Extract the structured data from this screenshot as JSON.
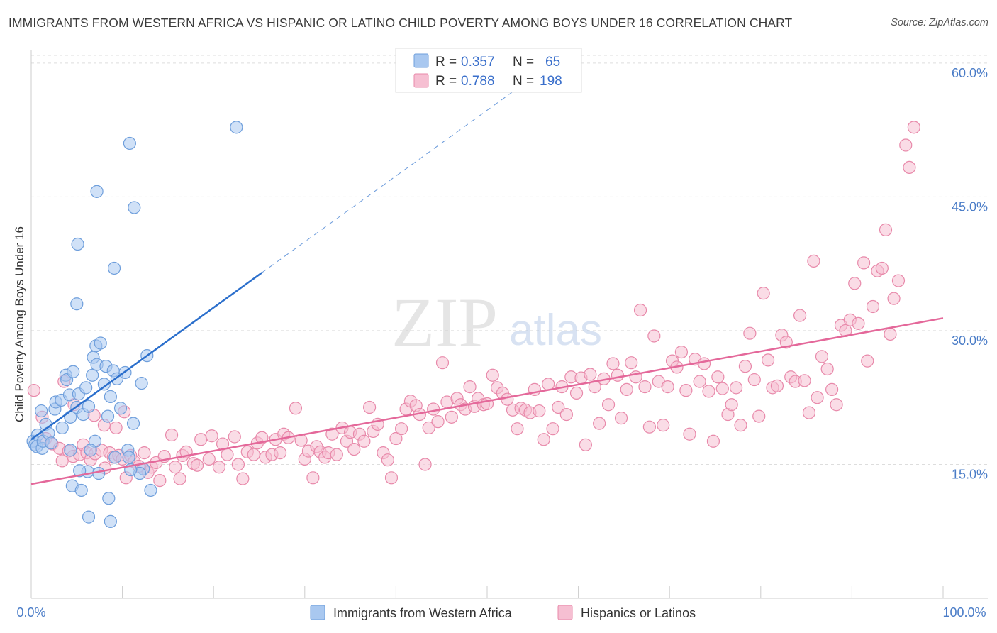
{
  "title": "IMMIGRANTS FROM WESTERN AFRICA VS HISPANIC OR LATINO CHILD POVERTY AMONG BOYS UNDER 16 CORRELATION CHART",
  "source": "Source: ZipAtlas.com",
  "watermark": {
    "zip": "ZIP",
    "atlas": "atlas"
  },
  "colors": {
    "blue_fill": "#a9c8f0",
    "blue_stroke": "#6f9fdc",
    "blue_line": "#2b6fcc",
    "pink_fill": "#f6bfd2",
    "pink_stroke": "#e889aa",
    "pink_line": "#e4689a",
    "tick_text": "#4a7cc7",
    "grid": "#dddddd"
  },
  "legend": {
    "rows": [
      {
        "r_label": "R =",
        "r_value": "0.357",
        "n_label": "N =",
        "n_value": "65"
      },
      {
        "r_label": "R =",
        "r_value": "0.788",
        "n_label": "N =",
        "n_value": "198"
      }
    ]
  },
  "bottom_legend": [
    {
      "label": "Immigrants from Western Africa"
    },
    {
      "label": "Hispanics or Latinos"
    }
  ],
  "chart_data": {
    "type": "scatter",
    "title": "IMMIGRANTS FROM WESTERN AFRICA VS HISPANIC OR LATINO CHILD POVERTY AMONG BOYS UNDER 16 CORRELATION CHART",
    "xlabel": "",
    "ylabel": "Child Poverty Among Boys Under 16",
    "xlim": [
      0,
      100
    ],
    "ylim": [
      0,
      61.5
    ],
    "x_tick_labels": [
      "0.0%",
      "100.0%"
    ],
    "y_ticks": [
      15,
      30,
      45,
      60
    ],
    "y_tick_labels": [
      "15.0%",
      "30.0%",
      "45.0%",
      "60.0%"
    ],
    "grid": true,
    "legend_position": "top-center",
    "series": [
      {
        "name": "Immigrants from Western Africa",
        "r": 0.357,
        "n": 65,
        "trend": {
          "x0": 0,
          "y0": 17.8,
          "x1": 25.3,
          "y1": 36.5,
          "dashed_to_x": 55,
          "dashed_to_y": 58.4
        },
        "points": [
          [
            0.2,
            17.6
          ],
          [
            0.4,
            17.2
          ],
          [
            0.7,
            18.3
          ],
          [
            0.6,
            17.0
          ],
          [
            1.1,
            21.0
          ],
          [
            1.2,
            16.8
          ],
          [
            1.3,
            17.6
          ],
          [
            1.6,
            19.5
          ],
          [
            1.9,
            18.5
          ],
          [
            2.2,
            17.4
          ],
          [
            2.6,
            21.2
          ],
          [
            2.7,
            22.0
          ],
          [
            3.3,
            22.2
          ],
          [
            3.4,
            19.1
          ],
          [
            3.8,
            25.0
          ],
          [
            3.9,
            24.5
          ],
          [
            4.2,
            22.8
          ],
          [
            4.3,
            20.3
          ],
          [
            4.6,
            25.4
          ],
          [
            5.0,
            21.4
          ],
          [
            5.2,
            22.9
          ],
          [
            5.7,
            20.6
          ],
          [
            6.0,
            23.6
          ],
          [
            6.3,
            21.5
          ],
          [
            6.7,
            25.0
          ],
          [
            6.8,
            27.0
          ],
          [
            7.1,
            28.3
          ],
          [
            7.2,
            26.2
          ],
          [
            7.6,
            28.6
          ],
          [
            8.0,
            24.0
          ],
          [
            8.2,
            26.0
          ],
          [
            8.4,
            20.4
          ],
          [
            8.7,
            22.6
          ],
          [
            9.0,
            25.5
          ],
          [
            9.4,
            24.6
          ],
          [
            9.8,
            21.3
          ],
          [
            10.3,
            25.3
          ],
          [
            10.6,
            16.6
          ],
          [
            10.7,
            15.8
          ],
          [
            5.0,
            33.0
          ],
          [
            5.1,
            39.7
          ],
          [
            7.2,
            45.6
          ],
          [
            9.1,
            37.0
          ],
          [
            10.8,
            51.0
          ],
          [
            11.3,
            43.8
          ],
          [
            22.5,
            52.8
          ],
          [
            11.2,
            19.6
          ],
          [
            12.1,
            24.1
          ],
          [
            12.7,
            27.2
          ],
          [
            12.3,
            14.5
          ],
          [
            11.9,
            14.0
          ],
          [
            13.1,
            12.1
          ],
          [
            4.5,
            12.6
          ],
          [
            5.5,
            12.1
          ],
          [
            6.2,
            14.2
          ],
          [
            7.4,
            14.0
          ],
          [
            8.5,
            11.2
          ],
          [
            8.7,
            8.6
          ],
          [
            6.3,
            9.1
          ],
          [
            4.3,
            16.6
          ],
          [
            5.3,
            14.3
          ],
          [
            7.0,
            17.6
          ],
          [
            9.2,
            15.8
          ],
          [
            10.9,
            14.4
          ],
          [
            6.5,
            16.6
          ]
        ]
      },
      {
        "name": "Hispanics or Latinos",
        "r": 0.788,
        "n": 198,
        "trend": {
          "x0": 0,
          "y0": 12.8,
          "x1": 100,
          "y1": 31.4
        },
        "points": [
          [
            0.3,
            23.3
          ],
          [
            1.2,
            20.3
          ],
          [
            1.6,
            17.9
          ],
          [
            2.3,
            17.3
          ],
          [
            3.1,
            16.8
          ],
          [
            3.4,
            15.4
          ],
          [
            4.1,
            16.5
          ],
          [
            4.6,
            15.9
          ],
          [
            5.3,
            16.1
          ],
          [
            5.7,
            17.2
          ],
          [
            6.1,
            16.3
          ],
          [
            6.5,
            15.5
          ],
          [
            7.0,
            16.2
          ],
          [
            7.7,
            16.6
          ],
          [
            8.1,
            14.6
          ],
          [
            8.6,
            16.3
          ],
          [
            9.0,
            15.8
          ],
          [
            9.6,
            16.0
          ],
          [
            10.0,
            15.6
          ],
          [
            10.4,
            13.5
          ],
          [
            10.9,
            16.0
          ],
          [
            11.3,
            15.3
          ],
          [
            11.8,
            14.8
          ],
          [
            12.4,
            16.3
          ],
          [
            12.8,
            14.1
          ],
          [
            13.2,
            14.7
          ],
          [
            13.7,
            15.2
          ],
          [
            14.1,
            13.2
          ],
          [
            14.6,
            15.9
          ],
          [
            15.4,
            18.3
          ],
          [
            15.8,
            14.7
          ],
          [
            16.3,
            13.4
          ],
          [
            16.6,
            16.0
          ],
          [
            17.0,
            16.4
          ],
          [
            17.8,
            15.1
          ],
          [
            18.2,
            14.9
          ],
          [
            18.6,
            17.8
          ],
          [
            19.5,
            15.6
          ],
          [
            19.8,
            18.2
          ],
          [
            20.6,
            14.7
          ],
          [
            21.0,
            17.3
          ],
          [
            21.5,
            16.1
          ],
          [
            22.3,
            18.1
          ],
          [
            22.7,
            15.0
          ],
          [
            23.2,
            13.4
          ],
          [
            23.7,
            16.4
          ],
          [
            24.4,
            16.1
          ],
          [
            24.8,
            17.4
          ],
          [
            25.3,
            18.0
          ],
          [
            25.7,
            15.8
          ],
          [
            26.4,
            16.1
          ],
          [
            26.8,
            17.8
          ],
          [
            27.3,
            16.3
          ],
          [
            27.7,
            18.4
          ],
          [
            28.2,
            18.0
          ],
          [
            29.0,
            21.3
          ],
          [
            29.6,
            17.7
          ],
          [
            30.0,
            15.6
          ],
          [
            30.4,
            16.5
          ],
          [
            30.9,
            13.5
          ],
          [
            31.3,
            17.0
          ],
          [
            31.7,
            16.4
          ],
          [
            32.2,
            15.8
          ],
          [
            32.6,
            16.3
          ],
          [
            33.0,
            18.4
          ],
          [
            33.5,
            16.1
          ],
          [
            34.1,
            19.1
          ],
          [
            34.6,
            17.6
          ],
          [
            35.0,
            18.6
          ],
          [
            35.4,
            16.7
          ],
          [
            36.0,
            18.4
          ],
          [
            36.5,
            17.6
          ],
          [
            37.1,
            21.4
          ],
          [
            37.5,
            18.7
          ],
          [
            38.0,
            19.5
          ],
          [
            38.6,
            16.3
          ],
          [
            39.1,
            15.5
          ],
          [
            39.5,
            13.5
          ],
          [
            40.0,
            17.9
          ],
          [
            40.6,
            19.0
          ],
          [
            41.1,
            21.2
          ],
          [
            41.6,
            22.1
          ],
          [
            42.2,
            21.6
          ],
          [
            42.6,
            20.6
          ],
          [
            43.2,
            15.0
          ],
          [
            43.6,
            19.1
          ],
          [
            44.1,
            21.2
          ],
          [
            44.6,
            19.8
          ],
          [
            45.1,
            26.4
          ],
          [
            45.6,
            22.0
          ],
          [
            46.1,
            20.3
          ],
          [
            46.7,
            22.4
          ],
          [
            47.1,
            21.7
          ],
          [
            47.6,
            21.2
          ],
          [
            48.1,
            23.7
          ],
          [
            48.6,
            21.5
          ],
          [
            49.0,
            22.4
          ],
          [
            49.6,
            21.7
          ],
          [
            50.0,
            21.8
          ],
          [
            50.6,
            25.0
          ],
          [
            51.1,
            23.6
          ],
          [
            51.7,
            23.0
          ],
          [
            52.2,
            22.3
          ],
          [
            52.8,
            21.1
          ],
          [
            53.3,
            19.0
          ],
          [
            53.7,
            21.3
          ],
          [
            54.2,
            21.1
          ],
          [
            54.7,
            20.8
          ],
          [
            55.2,
            23.4
          ],
          [
            55.7,
            21.0
          ],
          [
            56.2,
            17.8
          ],
          [
            56.7,
            24.0
          ],
          [
            57.2,
            19.0
          ],
          [
            57.8,
            21.4
          ],
          [
            58.2,
            23.7
          ],
          [
            58.7,
            20.6
          ],
          [
            59.2,
            24.8
          ],
          [
            59.8,
            23.0
          ],
          [
            60.3,
            24.7
          ],
          [
            60.8,
            17.2
          ],
          [
            61.3,
            25.1
          ],
          [
            61.8,
            23.7
          ],
          [
            62.3,
            19.6
          ],
          [
            62.8,
            24.6
          ],
          [
            63.3,
            21.7
          ],
          [
            63.8,
            26.3
          ],
          [
            64.3,
            25.0
          ],
          [
            64.7,
            20.2
          ],
          [
            65.3,
            23.4
          ],
          [
            65.8,
            26.4
          ],
          [
            66.3,
            24.8
          ],
          [
            66.8,
            32.3
          ],
          [
            67.3,
            23.7
          ],
          [
            67.8,
            19.2
          ],
          [
            68.3,
            29.4
          ],
          [
            68.8,
            24.3
          ],
          [
            69.3,
            19.4
          ],
          [
            69.8,
            23.7
          ],
          [
            70.3,
            26.6
          ],
          [
            70.8,
            25.9
          ],
          [
            71.3,
            27.6
          ],
          [
            71.8,
            23.3
          ],
          [
            72.2,
            18.4
          ],
          [
            72.8,
            26.8
          ],
          [
            73.3,
            24.3
          ],
          [
            73.8,
            26.3
          ],
          [
            74.3,
            23.2
          ],
          [
            74.8,
            17.6
          ],
          [
            75.3,
            24.8
          ],
          [
            75.8,
            23.5
          ],
          [
            76.4,
            20.6
          ],
          [
            76.8,
            21.7
          ],
          [
            77.3,
            23.6
          ],
          [
            77.8,
            19.4
          ],
          [
            78.3,
            26.0
          ],
          [
            78.8,
            29.7
          ],
          [
            79.3,
            24.5
          ],
          [
            79.8,
            20.4
          ],
          [
            80.3,
            34.2
          ],
          [
            80.8,
            26.7
          ],
          [
            81.3,
            23.6
          ],
          [
            81.8,
            23.8
          ],
          [
            82.3,
            29.5
          ],
          [
            82.8,
            28.7
          ],
          [
            83.3,
            24.8
          ],
          [
            83.8,
            24.3
          ],
          [
            84.3,
            31.7
          ],
          [
            84.8,
            24.4
          ],
          [
            85.3,
            20.8
          ],
          [
            85.8,
            37.8
          ],
          [
            86.2,
            22.5
          ],
          [
            86.7,
            27.1
          ],
          [
            87.3,
            25.7
          ],
          [
            87.8,
            23.4
          ],
          [
            88.3,
            21.7
          ],
          [
            88.8,
            30.6
          ],
          [
            89.3,
            30.0
          ],
          [
            89.8,
            31.2
          ],
          [
            90.3,
            35.3
          ],
          [
            90.7,
            30.8
          ],
          [
            91.3,
            37.6
          ],
          [
            91.7,
            26.6
          ],
          [
            92.3,
            32.7
          ],
          [
            92.8,
            36.7
          ],
          [
            93.3,
            37.0
          ],
          [
            93.7,
            41.3
          ],
          [
            94.2,
            29.6
          ],
          [
            94.6,
            33.6
          ],
          [
            95.1,
            35.6
          ],
          [
            95.9,
            50.8
          ],
          [
            96.3,
            48.3
          ],
          [
            96.8,
            52.8
          ],
          [
            3.6,
            24.3
          ],
          [
            4.7,
            21.7
          ],
          [
            6.9,
            20.5
          ],
          [
            8.0,
            19.4
          ],
          [
            9.3,
            19.1
          ],
          [
            10.2,
            20.9
          ]
        ]
      }
    ]
  }
}
